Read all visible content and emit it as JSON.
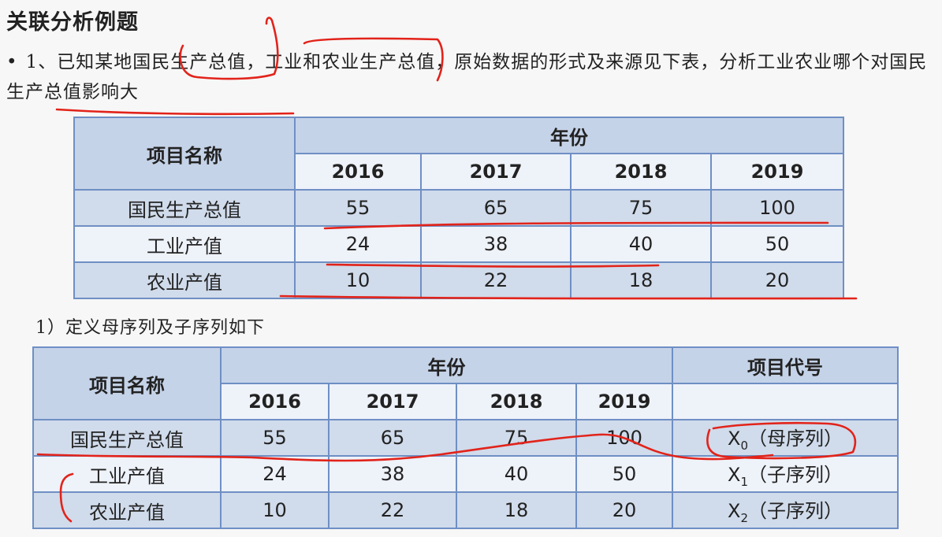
{
  "title": "关联分析例题",
  "problem": {
    "bullet": "•",
    "text": "1、已知某地国民生产总值，工业和农业生产总值，原始数据的形式及来源见下表，分析工业农业哪个对国民生产总值影响大"
  },
  "table1": {
    "item_header": "项目名称",
    "year_header": "年份",
    "years": [
      "2016",
      "2017",
      "2018",
      "2019"
    ],
    "rows": [
      {
        "name": "国民生产总值",
        "values": [
          "55",
          "65",
          "75",
          "100"
        ]
      },
      {
        "name": "工业产值",
        "values": [
          "24",
          "38",
          "40",
          "50"
        ]
      },
      {
        "name": "农业产值",
        "values": [
          "10",
          "22",
          "18",
          "20"
        ]
      }
    ]
  },
  "step1": "1）定义母序列及子序列如下",
  "table2": {
    "item_header": "项目名称",
    "year_header": "年份",
    "code_header": "项目代号",
    "years": [
      "2016",
      "2017",
      "2018",
      "2019"
    ],
    "rows": [
      {
        "name": "国民生产总值",
        "values": [
          "55",
          "65",
          "75",
          "100"
        ],
        "code": "X",
        "code_sub": "0",
        "code_label": "（母序列）"
      },
      {
        "name": "工业产值",
        "values": [
          "24",
          "38",
          "40",
          "50"
        ],
        "code": "X",
        "code_sub": "1",
        "code_label": "（子序列）"
      },
      {
        "name": "农业产值",
        "values": [
          "10",
          "22",
          "18",
          "20"
        ],
        "code": "X",
        "code_sub": "2",
        "code_label": "（子序列）"
      }
    ]
  },
  "colors": {
    "ink": "#e2231a",
    "table_border": "#6f8fc4",
    "header_bg": "#c5d3e8"
  }
}
